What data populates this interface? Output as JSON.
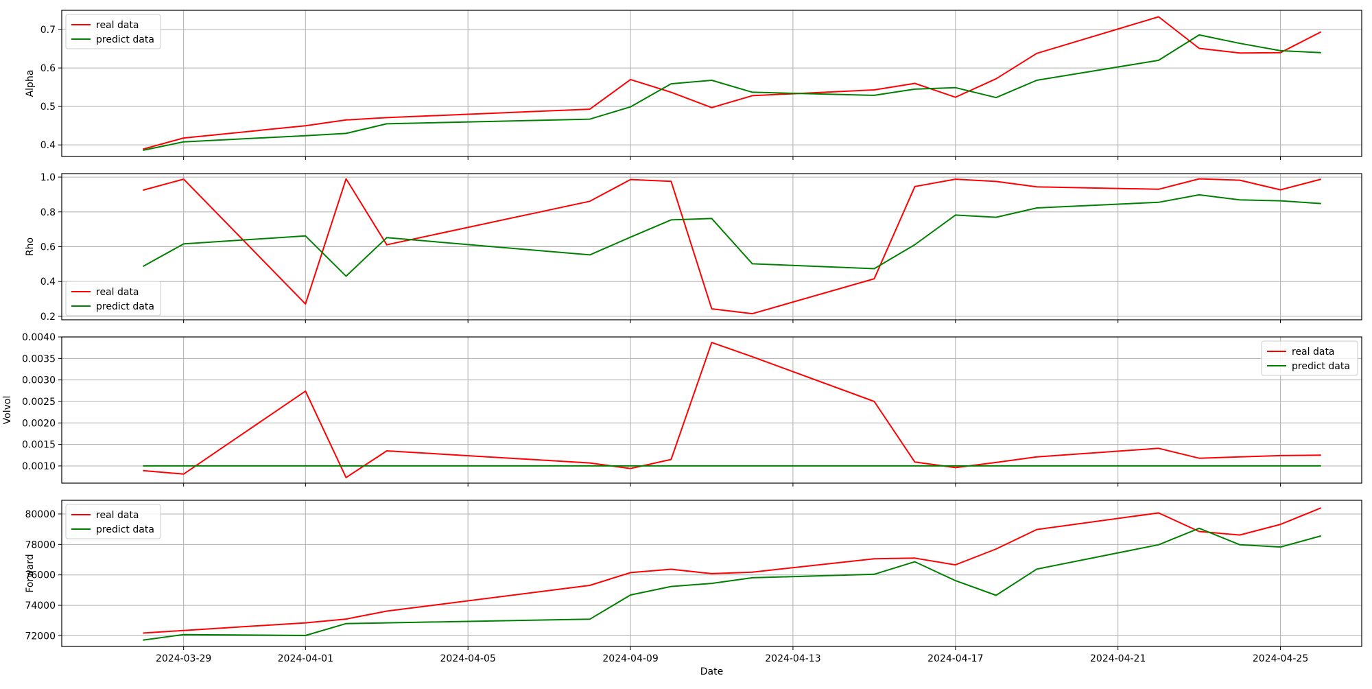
{
  "chart_data": {
    "type": "line",
    "xlabel": "Date",
    "x": [
      "2024-03-28",
      "2024-03-29",
      "2024-04-01",
      "2024-04-02",
      "2024-04-03",
      "2024-04-08",
      "2024-04-09",
      "2024-04-10",
      "2024-04-11",
      "2024-04-12",
      "2024-04-15",
      "2024-04-16",
      "2024-04-17",
      "2024-04-18",
      "2024-04-19",
      "2024-04-22",
      "2024-04-23",
      "2024-04-24",
      "2024-04-25",
      "2024-04-26"
    ],
    "xlim": [
      "2024-03-26",
      "2024-04-27"
    ],
    "xticks": [
      "2024-03-29",
      "2024-04-01",
      "2024-04-05",
      "2024-04-09",
      "2024-04-13",
      "2024-04-17",
      "2024-04-21",
      "2024-04-25"
    ],
    "grid": true,
    "colors": {
      "real": "#ff0000",
      "predict": "#008000"
    },
    "panels": [
      {
        "ylabel": "Alpha",
        "ylim": [
          0.37,
          0.75
        ],
        "yticks": [
          0.4,
          0.5,
          0.6,
          0.7
        ],
        "ytick_labels": [
          "0.4",
          "0.5",
          "0.6",
          "0.7"
        ],
        "legend_loc": "upper-left",
        "series": [
          {
            "name": "real data",
            "values": [
              0.389,
              0.418,
              0.45,
              0.465,
              0.471,
              0.493,
              0.57,
              0.537,
              0.497,
              0.528,
              0.543,
              0.56,
              0.524,
              0.572,
              0.638,
              0.733,
              0.651,
              0.639,
              0.64,
              0.694
            ]
          },
          {
            "name": "predict data",
            "values": [
              0.386,
              0.408,
              0.424,
              0.43,
              0.455,
              0.467,
              0.499,
              0.559,
              0.568,
              0.537,
              0.529,
              0.545,
              0.549,
              0.523,
              0.568,
              0.62,
              0.686,
              0.664,
              0.645,
              0.64
            ]
          }
        ]
      },
      {
        "ylabel": "Rho",
        "ylim": [
          0.18,
          1.02
        ],
        "yticks": [
          0.2,
          0.4,
          0.6,
          0.8,
          1.0
        ],
        "ytick_labels": [
          "0.2",
          "0.4",
          "0.6",
          "0.8",
          "1.0"
        ],
        "legend_loc": "lower-left",
        "series": [
          {
            "name": "real data",
            "values": [
              0.925,
              0.988,
              0.271,
              0.99,
              0.611,
              0.861,
              0.986,
              0.976,
              0.243,
              0.215,
              0.416,
              0.946,
              0.988,
              0.975,
              0.944,
              0.93,
              0.99,
              0.982,
              0.927,
              0.988
            ]
          },
          {
            "name": "predict data",
            "values": [
              0.487,
              0.616,
              0.662,
              0.431,
              0.652,
              0.553,
              0.655,
              0.754,
              0.762,
              0.502,
              0.474,
              0.612,
              0.782,
              0.769,
              0.823,
              0.855,
              0.898,
              0.869,
              0.864,
              0.848
            ]
          }
        ]
      },
      {
        "ylabel": "Volvol",
        "ylim": [
          0.0006,
          0.004
        ],
        "yticks": [
          0.001,
          0.0015,
          0.002,
          0.0025,
          0.003,
          0.0035,
          0.004
        ],
        "ytick_labels": [
          "0.0010",
          "0.0015",
          "0.0020",
          "0.0025",
          "0.0030",
          "0.0035",
          "0.0040"
        ],
        "legend_loc": "upper-right",
        "series": [
          {
            "name": "real data",
            "values": [
              0.00089,
              0.00081,
              0.00274,
              0.00073,
              0.00135,
              0.00107,
              0.00094,
              0.00115,
              0.00387,
              0.00354,
              0.0025,
              0.00109,
              0.00096,
              0.00108,
              0.00121,
              0.00141,
              0.00118,
              0.00121,
              0.00124,
              0.00125
            ]
          },
          {
            "name": "predict data",
            "values": [
              0.001,
              0.001,
              0.001,
              0.001,
              0.001,
              0.001,
              0.001,
              0.001,
              0.001,
              0.001,
              0.001,
              0.001,
              0.001,
              0.001,
              0.001,
              0.001,
              0.001,
              0.001,
              0.001,
              0.001
            ]
          }
        ]
      },
      {
        "ylabel": "Forward",
        "ylim": [
          71300,
          80900
        ],
        "yticks": [
          72000,
          74000,
          76000,
          78000,
          80000
        ],
        "ytick_labels": [
          "72000",
          "74000",
          "76000",
          "78000",
          "80000"
        ],
        "legend_loc": "upper-left",
        "series": [
          {
            "name": "real data",
            "values": [
              72180,
              72350,
              72850,
              73100,
              73620,
              75310,
              76150,
              76370,
              76080,
              76180,
              77060,
              77100,
              76660,
              77700,
              78980,
              80070,
              78850,
              78620,
              79320,
              80400
            ]
          },
          {
            "name": "predict data",
            "values": [
              71720,
              72080,
              72020,
              72800,
              72850,
              73090,
              74680,
              75240,
              75440,
              75810,
              76040,
              76860,
              75620,
              74660,
              76380,
              77980,
              79060,
              77980,
              77830,
              78560
            ]
          }
        ]
      }
    ]
  }
}
